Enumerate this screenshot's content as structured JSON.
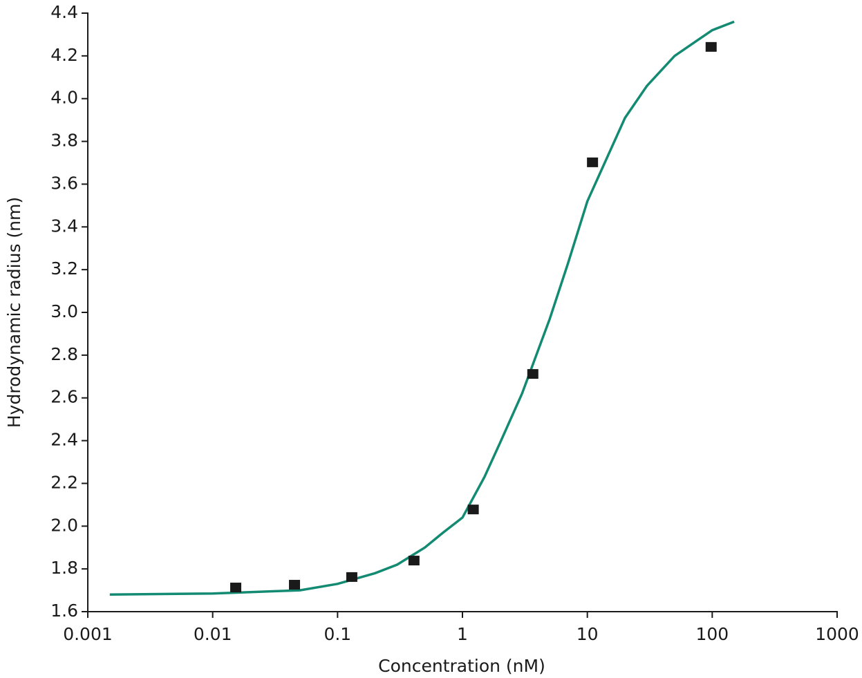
{
  "chart_data": {
    "type": "scatter",
    "xlabel": "Concentration (nM)",
    "ylabel": "Hydrodynamic radius (nm)",
    "xscale": "log",
    "xlim": [
      0.001,
      1000
    ],
    "xticks": [
      0.001,
      0.01,
      0.1,
      1,
      10,
      100,
      1000
    ],
    "ylim": [
      1.6,
      4.4
    ],
    "yticks": [
      1.6,
      1.8,
      {
        "value": 2.0,
        "label": "2.0"
      },
      2.2,
      2.4,
      2.6,
      2.8,
      {
        "value": 3.0,
        "label": "3.0"
      },
      3.2,
      3.4,
      3.6,
      3.8,
      {
        "value": 4.0,
        "label": "4.0"
      },
      4.2,
      4.4
    ],
    "grid": false,
    "points": {
      "color": "#1a1a1a",
      "x": [
        0.0153,
        0.0452,
        0.13,
        0.409,
        1.22,
        3.66,
        11.0,
        98
      ],
      "y": [
        1.713,
        1.726,
        1.762,
        1.839,
        2.078,
        2.712,
        3.702,
        4.242
      ]
    },
    "fit": {
      "color": "#138a72",
      "x": [
        0.0015,
        0.01,
        0.05,
        0.1,
        0.2,
        0.3,
        0.5,
        0.7,
        1,
        1.5,
        2,
        3,
        5,
        7,
        10,
        20,
        30,
        50,
        100,
        150
      ],
      "y": [
        1.68,
        1.685,
        1.7,
        1.73,
        1.78,
        1.82,
        1.9,
        1.97,
        2.04,
        2.23,
        2.39,
        2.62,
        2.97,
        3.23,
        3.52,
        3.91,
        4.06,
        4.2,
        4.32,
        4.36
      ]
    }
  }
}
